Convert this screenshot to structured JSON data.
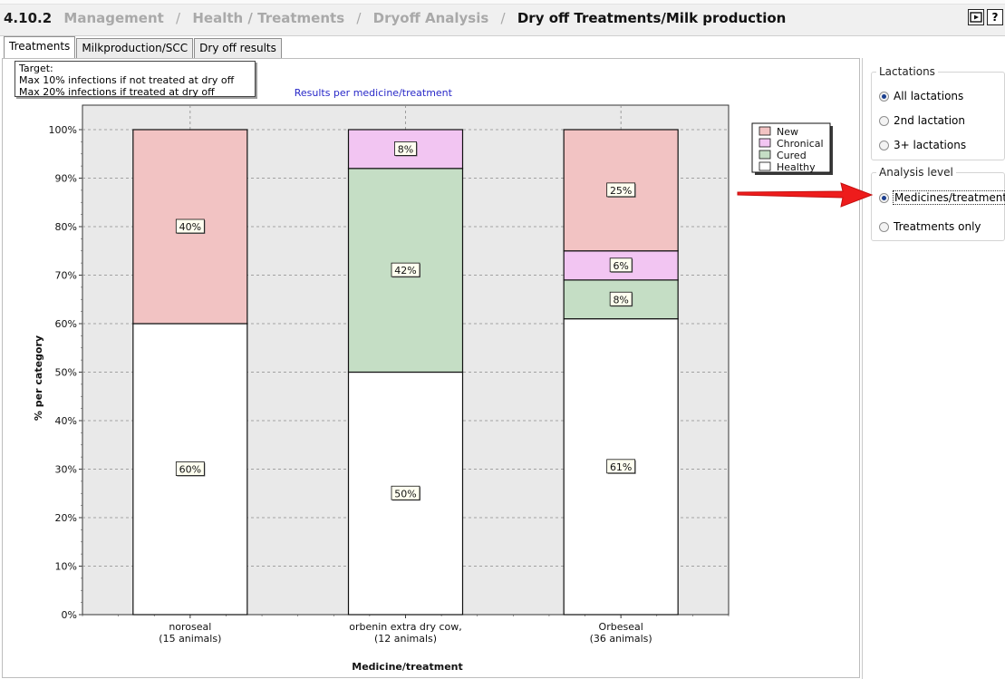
{
  "header": {
    "number": "4.10.2",
    "crumbs": [
      "Management",
      "Health / Treatments",
      "Dryoff Analysis"
    ],
    "current": "Dry off Treatments/Milk production",
    "icons": [
      "fullscreen-icon",
      "help-icon"
    ],
    "help_glyph": "?"
  },
  "tabs": [
    "Treatments",
    "Milkproduction/SCC",
    "Dry off results"
  ],
  "target": {
    "line1": "Target:",
    "line2": "Max 10% infections if not treated at dry off",
    "line3": "Max 20% infections if treated at dry off"
  },
  "right_panel": {
    "lactations_title": "Lactations",
    "lactations": [
      "All lactations",
      "2nd lactation",
      "3+ lactations"
    ],
    "analysis_title": "Analysis level",
    "analysis": [
      "Medicines/treatments",
      "Treatments only"
    ]
  },
  "chart_data": {
    "type": "bar",
    "stacked": true,
    "title": "Results per medicine/treatment",
    "xlabel": "Medicine/treatment",
    "ylabel": "% per category",
    "ylim": [
      0,
      100
    ],
    "y_ticks": [
      "0%",
      "10%",
      "20%",
      "30%",
      "40%",
      "50%",
      "60%",
      "70%",
      "80%",
      "90%",
      "100%"
    ],
    "categories": [
      {
        "name": "noroseal",
        "sub": "(15 animals)"
      },
      {
        "name": "orbenin extra dry cow,",
        "sub": "(12 animals)"
      },
      {
        "name": "Orbeseal",
        "sub": "(36 animals)"
      }
    ],
    "series": [
      {
        "name": "Healthy",
        "color": "#ffffff",
        "values": [
          60,
          50,
          61
        ],
        "labels": [
          "60%",
          "50%",
          "61%"
        ]
      },
      {
        "name": "Cured",
        "color": "#c5dec5",
        "values": [
          0,
          42,
          8
        ],
        "labels": [
          "",
          "42%",
          "8%"
        ]
      },
      {
        "name": "Chronical",
        "color": "#f2c5f2",
        "values": [
          0,
          8,
          6
        ],
        "labels": [
          "",
          "8%",
          "6%"
        ]
      },
      {
        "name": "New",
        "color": "#f2c3c3",
        "values": [
          40,
          0,
          25
        ],
        "labels": [
          "40%",
          "",
          "25%"
        ]
      }
    ],
    "legend_order": [
      "New",
      "Chronical",
      "Cured",
      "Healthy"
    ],
    "legend_position": "top-right",
    "grid": true,
    "plot_background": "#e9e9e9",
    "title_color": "#2828c8"
  }
}
